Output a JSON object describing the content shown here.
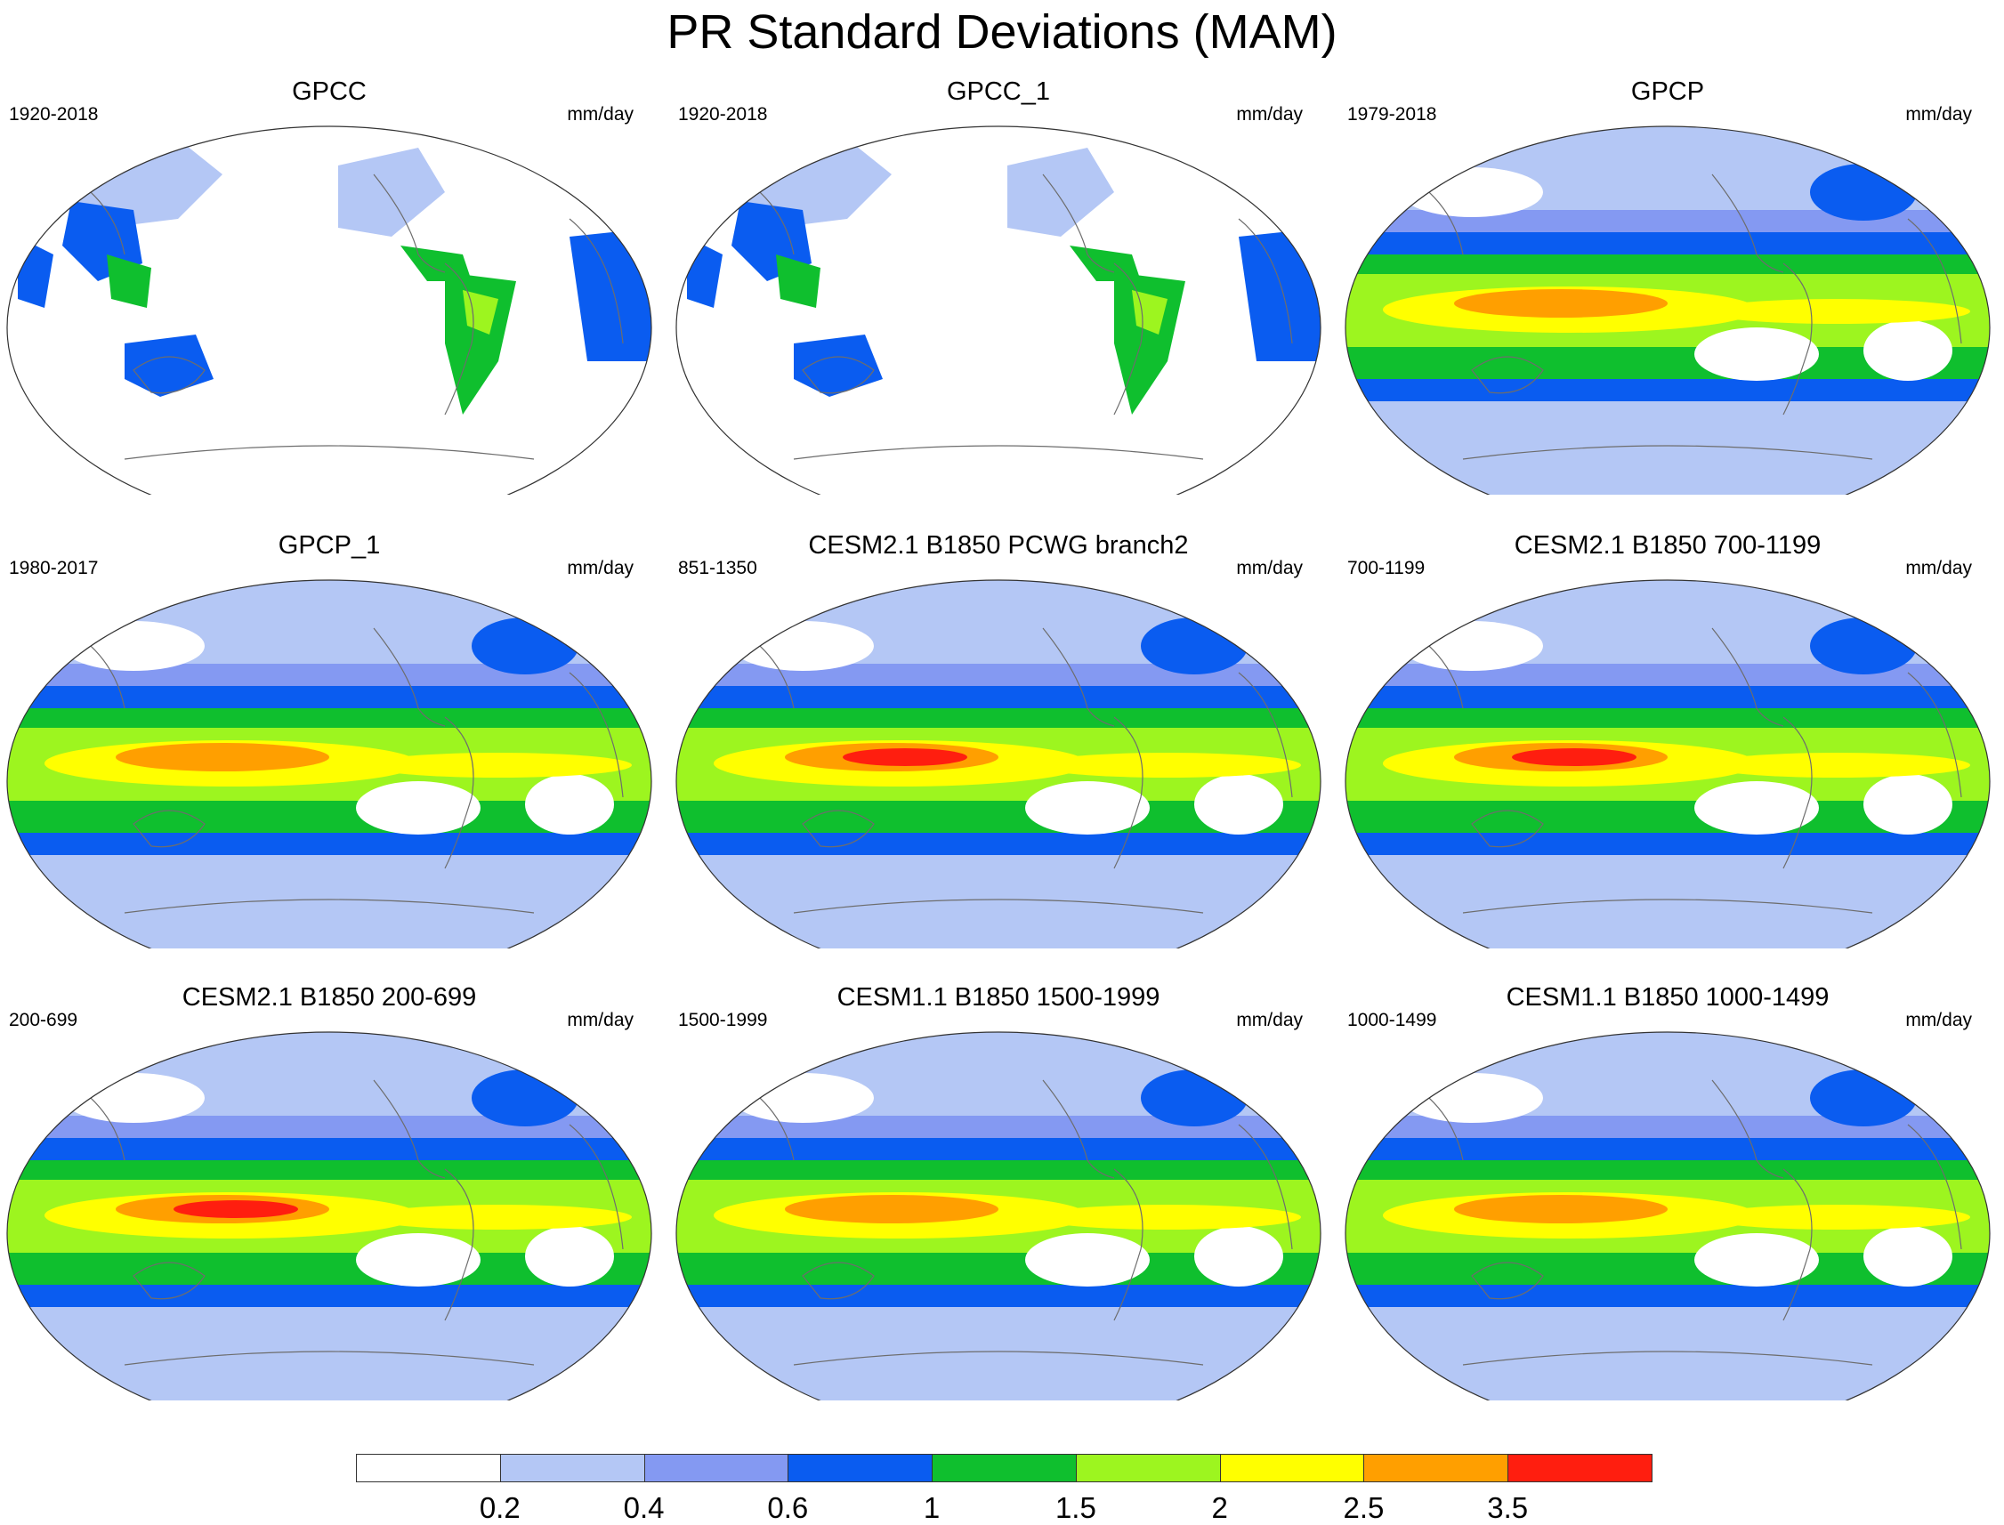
{
  "figure": {
    "title": "PR Standard Deviations (MAM)"
  },
  "panels": [
    {
      "title": "GPCC",
      "years": "1920-2018",
      "units": "mm/day",
      "coverage": "land"
    },
    {
      "title": "GPCC_1",
      "years": "1920-2018",
      "units": "mm/day",
      "coverage": "land"
    },
    {
      "title": "GPCP",
      "years": "1979-2018",
      "units": "mm/day",
      "coverage": "global",
      "peak": "orange"
    },
    {
      "title": "GPCP_1",
      "years": "1980-2017",
      "units": "mm/day",
      "coverage": "global",
      "peak": "orange"
    },
    {
      "title": "CESM2.1 B1850 PCWG branch2",
      "years": "851-1350",
      "units": "mm/day",
      "coverage": "global",
      "peak": "red"
    },
    {
      "title": "CESM2.1 B1850 700-1199",
      "years": "700-1199",
      "units": "mm/day",
      "coverage": "global",
      "peak": "red"
    },
    {
      "title": "CESM2.1 B1850 200-699",
      "years": "200-699",
      "units": "mm/day",
      "coverage": "global",
      "peak": "red"
    },
    {
      "title": "CESM1.1 B1850 1500-1999",
      "years": "1500-1999",
      "units": "mm/day",
      "coverage": "global",
      "peak": "orange"
    },
    {
      "title": "CESM1.1 B1850 1000-1499",
      "years": "1000-1499",
      "units": "mm/day",
      "coverage": "global",
      "peak": "orange"
    }
  ],
  "colorbar": {
    "colors": [
      "#ffffff",
      "#b4c7f5",
      "#8499f2",
      "#0a5cf0",
      "#0fbf2e",
      "#9df51f",
      "#ffff00",
      "#ff9f00",
      "#ff1e0f"
    ],
    "labels": [
      "0.2",
      "0.4",
      "0.6",
      "1",
      "1.5",
      "2",
      "2.5",
      "3.5"
    ]
  }
}
